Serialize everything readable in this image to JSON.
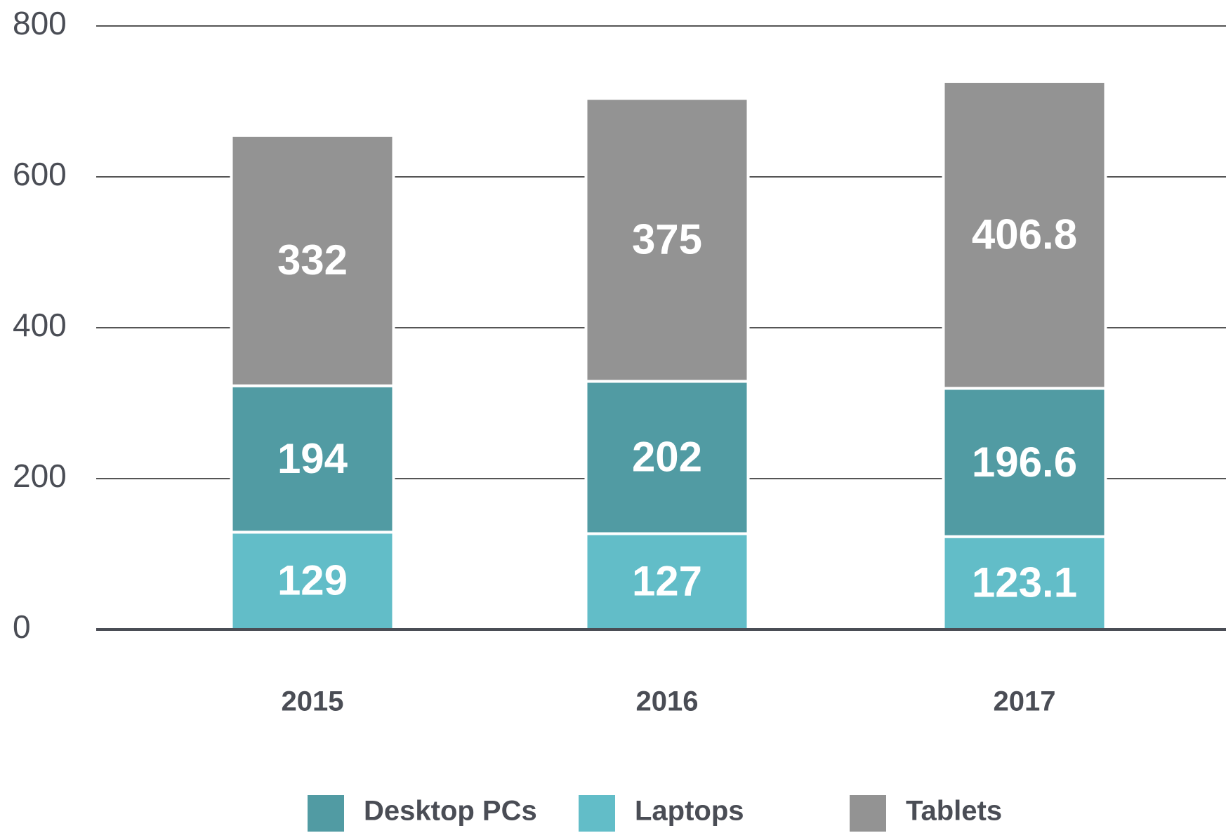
{
  "chart_data": {
    "type": "stacked_bar",
    "categories": [
      "2015",
      "2016",
      "2017"
    ],
    "series": [
      {
        "name": "Desktop PCs",
        "color": "#519ba3",
        "values": [
          194,
          202,
          196.6
        ]
      },
      {
        "name": "Laptops",
        "color": "#62bdc8",
        "values": [
          129,
          127,
          123.1
        ]
      },
      {
        "name": "Tablets",
        "color": "#939393",
        "values": [
          332,
          375,
          406.8
        ]
      }
    ],
    "ylim": [
      0,
      800
    ],
    "yticks": [
      0,
      200,
      400,
      600,
      800
    ],
    "grid": true
  }
}
